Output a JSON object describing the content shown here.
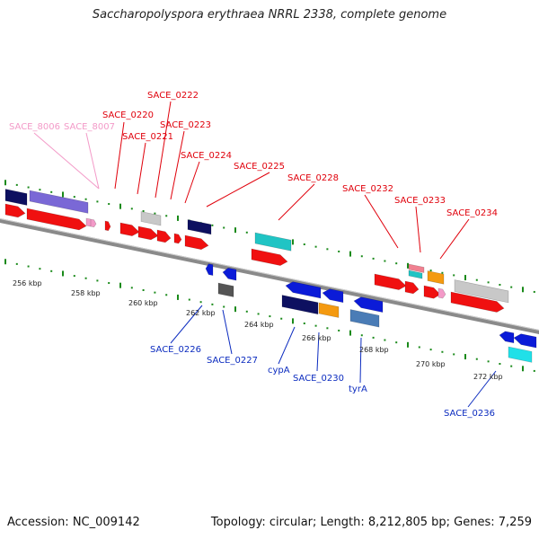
{
  "title": "Saccharopolyspora erythraea NRRL 2338, complete genome",
  "footer": {
    "accession": "Accession: NC_009142",
    "topology": "Topology: circular; Length: 8,212,805 bp; Genes: 7,259"
  },
  "colors": {
    "forward_label": "#e0000b",
    "reverse_label": "#0b2bbf",
    "pink_label": "#f39ac8",
    "backbone": "#8a8a8a",
    "tick": "#1a8a1a"
  },
  "kbp_ticks": [
    "256 kbp",
    "258 kbp",
    "260 kbp",
    "262 kbp",
    "264 kbp",
    "266 kbp",
    "268 kbp",
    "270 kbp",
    "272 kbp"
  ],
  "forward_labels": [
    "SACE_8006",
    "SACE_8007",
    "SACE_0220",
    "SACE_0222",
    "SACE_0221",
    "SACE_0223",
    "SACE_0224",
    "SACE_0225",
    "SACE_0228",
    "SACE_0232",
    "SACE_0233",
    "SACE_0234"
  ],
  "reverse_labels": [
    "SACE_0226",
    "SACE_0227",
    "cypA",
    "SACE_0230",
    "tyrA",
    "SACE_0236"
  ]
}
